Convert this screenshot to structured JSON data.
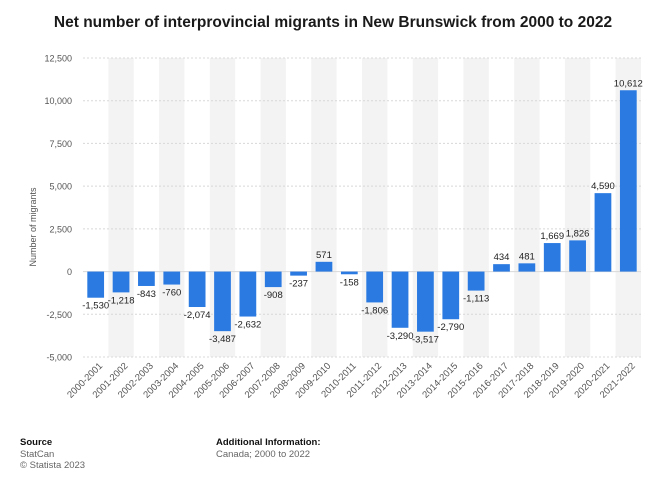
{
  "title": "Net number of interprovincial migrants in New Brunswick from 2000 to 2022",
  "colors": {
    "bar": "#2a7ae2",
    "band": "#f3f3f3",
    "grid": "#d8d8d8",
    "axis_text": "#555555",
    "label_text": "#222222"
  },
  "chart_data": {
    "type": "bar",
    "title": "Net number of interprovincial migrants in New Brunswick from 2000 to 2022",
    "ylabel": "Number of migrants",
    "xlabel": "",
    "ylim": [
      -5000,
      12500
    ],
    "yticks": [
      -5000,
      -2500,
      0,
      2500,
      5000,
      7500,
      10000,
      12500
    ],
    "ytick_labels": [
      "-5,000",
      "-2,500",
      "0",
      "2,500",
      "5,000",
      "7,500",
      "10,000",
      "12,500"
    ],
    "grid": true,
    "categories": [
      "2000-2001",
      "2001-2002",
      "2002-2003",
      "2003-2004",
      "2004-2005",
      "2005-2006",
      "2006-2007",
      "2007-2008",
      "2008-2009",
      "2009-2010",
      "2010-2011",
      "2011-2012",
      "2012-2013",
      "2013-2014",
      "2014-2015",
      "2015-2016",
      "2016-2017",
      "2017-2018",
      "2018-2019",
      "2019-2020",
      "2020-2021",
      "2021-2022"
    ],
    "values": [
      -1530,
      -1218,
      -843,
      -760,
      -2074,
      -3487,
      -2632,
      -908,
      -237,
      571,
      -158,
      -1806,
      -3290,
      -3517,
      -2790,
      -1113,
      434,
      481,
      1669,
      1826,
      4590,
      10612
    ],
    "data_labels": [
      "-1,530",
      "-1,218",
      "-843",
      "-760",
      "-2,074",
      "-3,487",
      "-2,632",
      "-908",
      "-237",
      "571",
      "-158",
      "-1,806",
      "-3,290",
      "-3,517",
      "-2,790",
      "-1,113",
      "434",
      "481",
      "1,669",
      "1,826",
      "4,590",
      "10,612"
    ]
  },
  "footer": {
    "source_heading": "Source",
    "source_lines": [
      "StatCan",
      "© Statista 2023"
    ],
    "info_heading": "Additional Information:",
    "info_text": "Canada; 2000 to 2022"
  }
}
